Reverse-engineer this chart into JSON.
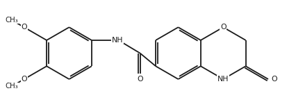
{
  "background": "#ffffff",
  "bond_color": "#1a1a1a",
  "lw": 1.3,
  "fs": 7.8,
  "figsize": [
    4.27,
    1.57
  ],
  "dpi": 100,
  "xlim": [
    -0.5,
    10.5
  ],
  "ylim": [
    0.0,
    4.2
  ]
}
